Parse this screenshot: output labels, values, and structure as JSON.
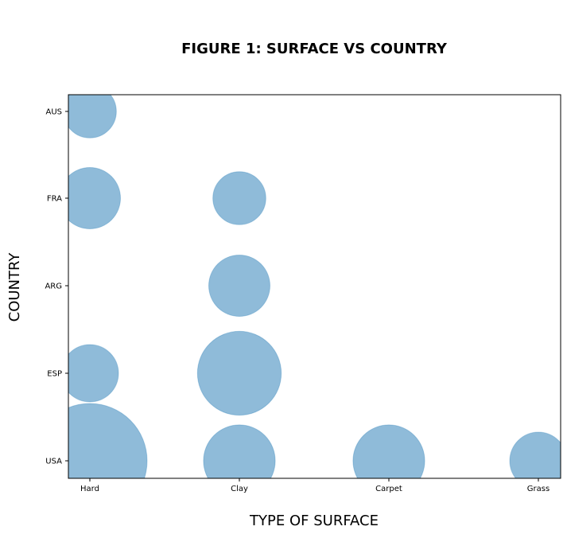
{
  "chart_data": {
    "type": "scatter",
    "title": "FIGURE 1: SURFACE VS COUNTRY",
    "xlabel": "TYPE OF SURFACE",
    "ylabel": "COUNTRY",
    "x_categories": [
      "Hard",
      "Clay",
      "Carpet",
      "Grass"
    ],
    "y_categories": [
      "USA",
      "ESP",
      "ARG",
      "FRA",
      "AUS"
    ],
    "points": [
      {
        "x": "Hard",
        "y": "USA",
        "size": 28
      },
      {
        "x": "Clay",
        "y": "USA",
        "size": 11
      },
      {
        "x": "Carpet",
        "y": "USA",
        "size": 11
      },
      {
        "x": "Grass",
        "y": "USA",
        "size": 7
      },
      {
        "x": "Hard",
        "y": "ESP",
        "size": 7
      },
      {
        "x": "Clay",
        "y": "ESP",
        "size": 15
      },
      {
        "x": "Clay",
        "y": "ARG",
        "size": 8
      },
      {
        "x": "Hard",
        "y": "FRA",
        "size": 8
      },
      {
        "x": "Clay",
        "y": "FRA",
        "size": 6
      },
      {
        "x": "Hard",
        "y": "AUS",
        "size": 6
      }
    ],
    "marker_color": "#1f77b4",
    "marker_alpha": 0.5,
    "grid": false,
    "legend": "none"
  }
}
